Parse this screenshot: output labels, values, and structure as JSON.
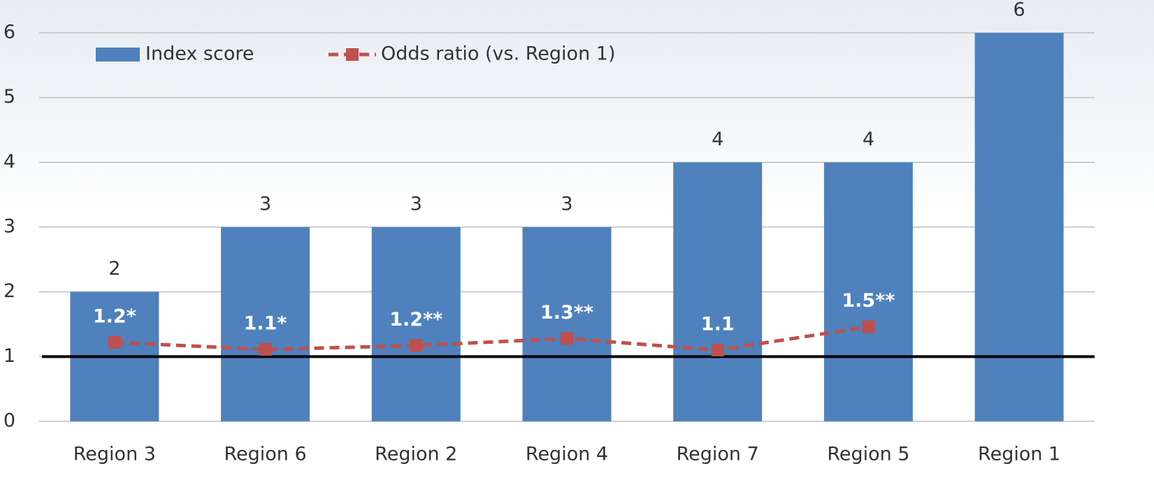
{
  "chart_data": {
    "type": "bar_line",
    "categories": [
      "Region 3",
      "Region 6",
      "Region 2",
      "Region 4",
      "Region 7",
      "Region 5",
      "Region 1"
    ],
    "series": [
      {
        "name": "Index score",
        "type": "bar",
        "color": "#4f81bd",
        "values": [
          2,
          3,
          3,
          3,
          4,
          4,
          6
        ]
      },
      {
        "name": "Odds ratio (vs. Region 1)",
        "type": "line",
        "color": "#c0504d",
        "values": [
          1.22,
          1.11,
          1.17,
          1.28,
          1.1,
          1.46,
          null
        ],
        "value_labels": [
          "1.2*",
          "1.1*",
          "1.2**",
          "1.3**",
          "1.1",
          "1.5**",
          null
        ]
      }
    ],
    "reference_line": 1,
    "ylim": [
      0,
      6
    ],
    "yticks": [
      0,
      1,
      2,
      3,
      4,
      5,
      6
    ],
    "grid": true,
    "legend": "top-left"
  }
}
